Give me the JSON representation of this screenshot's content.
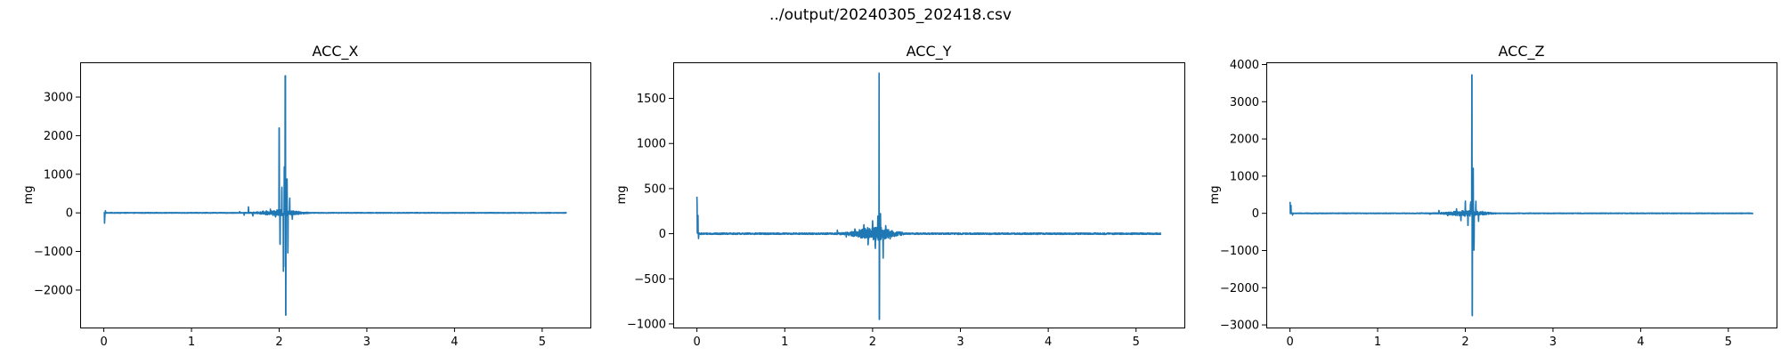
{
  "figure": {
    "suptitle": "../output/20240305_202418.csv"
  },
  "colors": {
    "series": "#1f77b4"
  },
  "chart_data": [
    {
      "type": "line",
      "title": "ACC_X",
      "xlabel": "",
      "ylabel": "mg",
      "xlim": [
        -0.27,
        5.55
      ],
      "ylim": [
        -2970,
        3900
      ],
      "xticks": [
        0,
        1,
        2,
        3,
        4,
        5
      ],
      "yticks": [
        -2000,
        -1000,
        0,
        1000,
        2000,
        3000
      ],
      "grid": false,
      "x_range": [
        0,
        5.28
      ],
      "events": [
        [
          0.0,
          0,
          0.35
        ],
        [
          0.01,
          -450,
          0.4
        ],
        [
          0.02,
          80,
          0.6
        ],
        [
          1.55,
          60,
          0.4
        ],
        [
          1.6,
          -90,
          0.4
        ],
        [
          1.65,
          220,
          0.6
        ],
        [
          1.7,
          -130,
          0.4
        ],
        [
          1.82,
          110,
          0.5
        ],
        [
          1.9,
          160,
          0.5
        ],
        [
          1.96,
          -230,
          0.6
        ],
        [
          2.0,
          2200,
          1.0
        ],
        [
          2.01,
          -1100,
          0.8
        ],
        [
          2.03,
          950,
          0.7
        ],
        [
          2.05,
          -1700,
          0.8
        ],
        [
          2.06,
          1500,
          0.7
        ],
        [
          2.07,
          3550,
          1.0
        ],
        [
          2.075,
          -2650,
          1.0
        ],
        [
          2.09,
          1350,
          0.7
        ],
        [
          2.1,
          -1250,
          0.7
        ],
        [
          2.12,
          700,
          0.5
        ],
        [
          2.15,
          -380,
          0.5
        ],
        [
          2.2,
          90,
          0.5
        ]
      ]
    },
    {
      "type": "line",
      "title": "ACC_Y",
      "xlabel": "",
      "ylabel": "mg",
      "xlim": [
        -0.27,
        5.55
      ],
      "ylim": [
        -1040,
        1900
      ],
      "xticks": [
        0,
        1,
        2,
        3,
        4,
        5
      ],
      "yticks": [
        -1000,
        -500,
        0,
        500,
        1000,
        1500
      ],
      "grid": false,
      "x_range": [
        0,
        5.28
      ],
      "events": [
        [
          0.0,
          620,
          0.5
        ],
        [
          0.01,
          300,
          0.5
        ],
        [
          0.02,
          -70,
          0.6
        ],
        [
          1.6,
          60,
          0.5
        ],
        [
          1.7,
          -70,
          0.5
        ],
        [
          1.8,
          90,
          0.5
        ],
        [
          1.9,
          180,
          0.6
        ],
        [
          1.95,
          -200,
          0.6
        ],
        [
          2.0,
          230,
          0.6
        ],
        [
          2.03,
          -300,
          0.6
        ],
        [
          2.06,
          250,
          0.6
        ],
        [
          2.075,
          1780,
          1.0
        ],
        [
          2.078,
          -950,
          1.0
        ],
        [
          2.09,
          280,
          0.6
        ],
        [
          2.12,
          -350,
          0.6
        ],
        [
          2.15,
          150,
          0.5
        ],
        [
          2.2,
          -80,
          0.5
        ]
      ]
    },
    {
      "type": "line",
      "title": "ACC_Z",
      "xlabel": "",
      "ylabel": "mg",
      "xlim": [
        -0.27,
        5.55
      ],
      "ylim": [
        -3070,
        4060
      ],
      "xticks": [
        0,
        1,
        2,
        3,
        4,
        5
      ],
      "yticks": [
        -3000,
        -2000,
        -1000,
        0,
        1000,
        2000,
        3000,
        4000
      ],
      "grid": false,
      "x_range": [
        0,
        5.28
      ],
      "events": [
        [
          0.0,
          500,
          0.5
        ],
        [
          0.01,
          300,
          0.5
        ],
        [
          0.03,
          -70,
          0.5
        ],
        [
          1.5,
          60,
          0.4
        ],
        [
          1.6,
          -60,
          0.4
        ],
        [
          1.7,
          120,
          0.5
        ],
        [
          1.8,
          -90,
          0.5
        ],
        [
          1.9,
          200,
          0.6
        ],
        [
          1.95,
          -300,
          0.6
        ],
        [
          2.0,
          480,
          0.6
        ],
        [
          2.03,
          -450,
          0.6
        ],
        [
          2.06,
          400,
          0.6
        ],
        [
          2.075,
          3720,
          1.0
        ],
        [
          2.08,
          -2750,
          1.0
        ],
        [
          2.09,
          1650,
          0.8
        ],
        [
          2.1,
          -1250,
          0.7
        ],
        [
          2.12,
          500,
          0.5
        ],
        [
          2.15,
          -300,
          0.5
        ],
        [
          2.2,
          80,
          0.5
        ]
      ]
    }
  ]
}
